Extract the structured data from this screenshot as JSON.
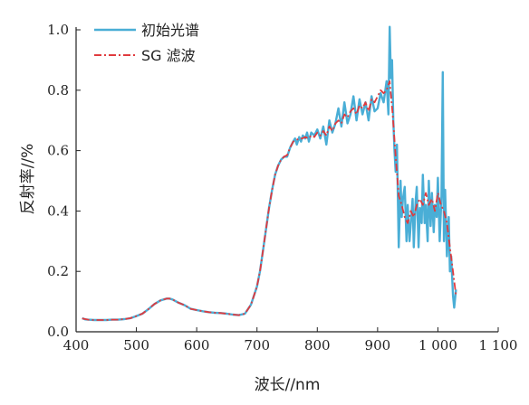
{
  "chart_data": {
    "type": "line",
    "title": "",
    "xlabel": "波长//nm",
    "ylabel": "反射率//%",
    "xlim": [
      400,
      1100
    ],
    "ylim": [
      0,
      1.0
    ],
    "xticks": [
      400,
      500,
      600,
      700,
      800,
      900,
      1000,
      1100
    ],
    "xtick_labels": [
      "400",
      "500",
      "600",
      "700",
      "800",
      "900",
      "1 000",
      "1 100"
    ],
    "yticks": [
      0,
      0.2,
      0.4,
      0.6,
      0.8,
      1.0
    ],
    "ytick_labels": [
      "0.0",
      "0.2",
      "0.4",
      "0.6",
      "0.8",
      "1.0"
    ],
    "legend_position": "top-left",
    "grid": false,
    "series": [
      {
        "name": "初始光谱",
        "color": "#4aaed6",
        "style": "solid",
        "x": [
          410,
          415,
          420,
          430,
          440,
          450,
          460,
          470,
          480,
          490,
          500,
          510,
          520,
          530,
          540,
          550,
          555,
          560,
          570,
          580,
          590,
          600,
          610,
          620,
          630,
          640,
          650,
          660,
          670,
          680,
          690,
          700,
          705,
          710,
          715,
          720,
          725,
          730,
          735,
          740,
          745,
          750,
          755,
          760,
          763,
          766,
          770,
          773,
          776,
          780,
          783,
          786,
          790,
          795,
          800,
          805,
          810,
          815,
          820,
          825,
          830,
          835,
          840,
          845,
          850,
          855,
          860,
          865,
          870,
          875,
          880,
          885,
          890,
          895,
          900,
          905,
          910,
          915,
          918,
          920,
          922,
          924,
          926,
          928,
          930,
          932,
          935,
          938,
          940,
          942,
          945,
          948,
          950,
          953,
          955,
          958,
          960,
          963,
          965,
          968,
          970,
          973,
          975,
          978,
          980,
          983,
          985,
          988,
          990,
          993,
          995,
          998,
          1000,
          1003,
          1006,
          1008,
          1010,
          1012,
          1015,
          1018,
          1020,
          1022,
          1025,
          1027,
          1030
        ],
        "y": [
          0.045,
          0.041,
          0.04,
          0.039,
          0.039,
          0.039,
          0.04,
          0.04,
          0.042,
          0.045,
          0.052,
          0.06,
          0.075,
          0.092,
          0.104,
          0.11,
          0.11,
          0.107,
          0.096,
          0.088,
          0.076,
          0.072,
          0.068,
          0.065,
          0.063,
          0.062,
          0.06,
          0.057,
          0.055,
          0.06,
          0.09,
          0.15,
          0.2,
          0.27,
          0.34,
          0.41,
          0.47,
          0.52,
          0.55,
          0.57,
          0.58,
          0.58,
          0.61,
          0.63,
          0.64,
          0.62,
          0.645,
          0.63,
          0.65,
          0.64,
          0.66,
          0.63,
          0.66,
          0.65,
          0.67,
          0.64,
          0.68,
          0.62,
          0.7,
          0.66,
          0.69,
          0.74,
          0.68,
          0.76,
          0.69,
          0.72,
          0.78,
          0.7,
          0.77,
          0.72,
          0.76,
          0.7,
          0.78,
          0.73,
          0.74,
          0.79,
          0.76,
          0.83,
          0.72,
          1.01,
          0.84,
          0.9,
          0.7,
          0.6,
          0.53,
          0.62,
          0.28,
          0.5,
          0.38,
          0.44,
          0.48,
          0.3,
          0.42,
          0.3,
          0.36,
          0.44,
          0.28,
          0.43,
          0.48,
          0.28,
          0.41,
          0.36,
          0.52,
          0.36,
          0.42,
          0.3,
          0.5,
          0.35,
          0.46,
          0.33,
          0.42,
          0.38,
          0.51,
          0.3,
          0.45,
          0.86,
          0.3,
          0.47,
          0.25,
          0.38,
          0.2,
          0.25,
          0.12,
          0.08,
          0.14
        ]
      },
      {
        "name": "SG 滤波",
        "color": "#e03a3e",
        "style": "dashdot",
        "x": [
          410,
          420,
          430,
          440,
          450,
          460,
          470,
          480,
          490,
          500,
          510,
          520,
          530,
          540,
          550,
          555,
          560,
          570,
          580,
          590,
          600,
          610,
          620,
          630,
          640,
          650,
          660,
          670,
          680,
          690,
          700,
          705,
          710,
          715,
          720,
          725,
          730,
          735,
          740,
          745,
          750,
          755,
          760,
          765,
          770,
          775,
          780,
          785,
          790,
          795,
          800,
          805,
          810,
          815,
          820,
          825,
          830,
          835,
          840,
          845,
          850,
          855,
          860,
          865,
          870,
          875,
          880,
          885,
          890,
          895,
          900,
          905,
          910,
          915,
          920,
          925,
          930,
          935,
          940,
          945,
          950,
          955,
          960,
          965,
          970,
          975,
          980,
          985,
          990,
          995,
          1000,
          1005,
          1010,
          1015,
          1020,
          1025,
          1030
        ],
        "y": [
          0.044,
          0.04,
          0.039,
          0.039,
          0.039,
          0.04,
          0.04,
          0.042,
          0.045,
          0.052,
          0.06,
          0.075,
          0.092,
          0.104,
          0.11,
          0.11,
          0.107,
          0.096,
          0.088,
          0.076,
          0.072,
          0.068,
          0.065,
          0.063,
          0.062,
          0.06,
          0.057,
          0.055,
          0.06,
          0.09,
          0.15,
          0.2,
          0.27,
          0.34,
          0.41,
          0.47,
          0.52,
          0.55,
          0.57,
          0.58,
          0.585,
          0.61,
          0.63,
          0.635,
          0.64,
          0.64,
          0.645,
          0.64,
          0.65,
          0.645,
          0.66,
          0.65,
          0.665,
          0.65,
          0.68,
          0.665,
          0.69,
          0.7,
          0.69,
          0.72,
          0.71,
          0.73,
          0.74,
          0.72,
          0.75,
          0.74,
          0.76,
          0.73,
          0.77,
          0.76,
          0.78,
          0.8,
          0.79,
          0.8,
          0.83,
          0.72,
          0.58,
          0.45,
          0.42,
          0.38,
          0.36,
          0.4,
          0.38,
          0.42,
          0.44,
          0.42,
          0.46,
          0.42,
          0.44,
          0.4,
          0.46,
          0.42,
          0.4,
          0.36,
          0.28,
          0.2,
          0.12
        ]
      }
    ]
  }
}
